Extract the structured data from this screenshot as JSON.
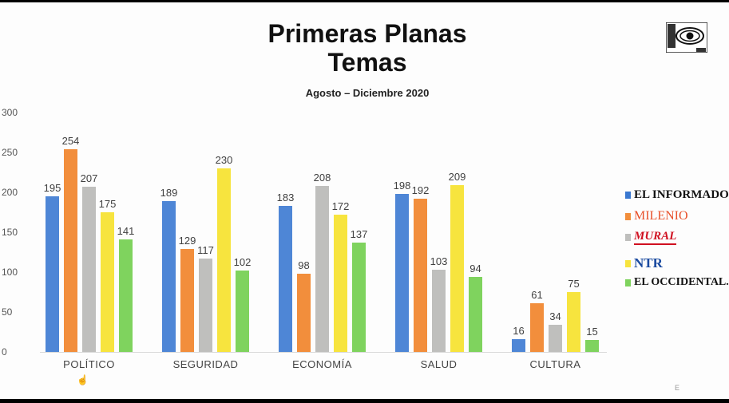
{
  "header": {
    "title_line1": "Primeras Planas",
    "title_line2": "Temas",
    "subtitle": "Agosto – Diciembre 2020"
  },
  "chart_data": {
    "type": "bar",
    "title": "Primeras Planas Temas",
    "subtitle": "Agosto – Diciembre 2020",
    "xlabel": "",
    "ylabel": "",
    "ylim": [
      0,
      300
    ],
    "yticks": [
      0,
      50,
      100,
      150,
      200,
      250,
      300
    ],
    "grid": false,
    "legend_position": "right",
    "categories": [
      "POLÍTICO",
      "SEGURIDAD",
      "ECONOMÍA",
      "SALUD",
      "CULTURA"
    ],
    "series": [
      {
        "name": "EL INFORMADOR",
        "color": "#4e86d6",
        "values": [
          195,
          189,
          183,
          198,
          16
        ]
      },
      {
        "name": "MILENIO",
        "color": "#f28e3c",
        "values": [
          254,
          129,
          98,
          192,
          61
        ]
      },
      {
        "name": "MURAL",
        "color": "#bfbfbd",
        "values": [
          207,
          117,
          208,
          103,
          34
        ]
      },
      {
        "name": "NTR",
        "color": "#f7e43e",
        "values": [
          175,
          230,
          172,
          209,
          75
        ]
      },
      {
        "name": "EL OCCIDENTAL",
        "color": "#7fd35e",
        "values": [
          141,
          102,
          137,
          94,
          15
        ]
      }
    ]
  },
  "legend": {
    "items": [
      {
        "label": "EL INFORMADOR",
        "color": "#3a78d0"
      },
      {
        "label": "MILENIO",
        "color": "#f28e3c"
      },
      {
        "label": "MURAL",
        "color": "#bfbfbd"
      },
      {
        "label": "NTR",
        "color": "#f7e43e"
      },
      {
        "label": "EL OCCIDENTAL.",
        "color": "#7fd35e"
      }
    ]
  },
  "logo": {
    "icon": "eye-logo-icon"
  }
}
